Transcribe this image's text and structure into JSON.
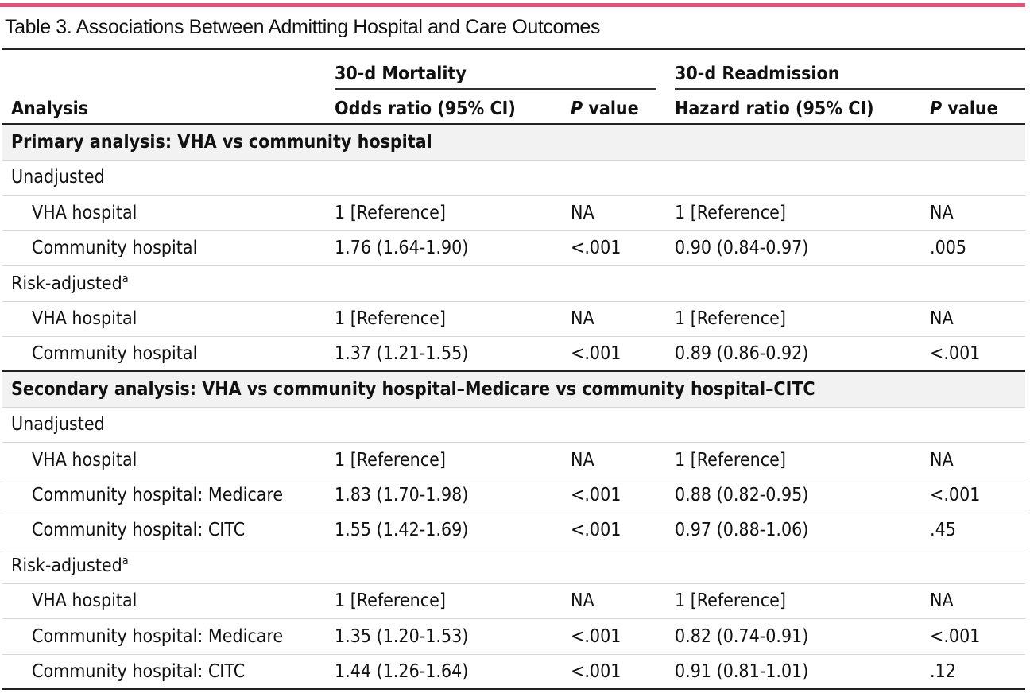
{
  "title": "Table 3. Associations Between Admitting Hospital and Care Outcomes",
  "accent_color": "#e05277",
  "headers": {
    "analysis": "Analysis",
    "group_mortality": "30-d Mortality",
    "group_readmission": "30-d Readmission",
    "odds_ratio": "Odds ratio (95% CI)",
    "hazard_ratio": "Hazard ratio (95% CI)",
    "p_italic": "P",
    "p_rest": " value"
  },
  "rows": [
    {
      "kind": "section",
      "label": "Primary analysis: VHA vs community hospital"
    },
    {
      "kind": "subsection",
      "label": "Unadjusted",
      "sup": ""
    },
    {
      "kind": "data",
      "label": "VHA hospital",
      "or": "1 [Reference]",
      "p1": "NA",
      "hr": "1 [Reference]",
      "p2": "NA"
    },
    {
      "kind": "data",
      "label": "Community hospital",
      "or": "1.76 (1.64-1.90)",
      "p1": "<.001",
      "hr": "0.90 (0.84-0.97)",
      "p2": ".005"
    },
    {
      "kind": "subsection",
      "label": "Risk-adjusted",
      "sup": "a"
    },
    {
      "kind": "data",
      "label": "VHA hospital",
      "or": "1 [Reference]",
      "p1": "NA",
      "hr": "1 [Reference]",
      "p2": "NA"
    },
    {
      "kind": "data",
      "label": "Community hospital",
      "or": "1.37 (1.21-1.55)",
      "p1": "<.001",
      "hr": "0.89 (0.86-0.92)",
      "p2": "<.001"
    },
    {
      "kind": "section",
      "label": "Secondary analysis: VHA vs community hospital–Medicare vs community hospital–CITC"
    },
    {
      "kind": "subsection",
      "label": "Unadjusted",
      "sup": ""
    },
    {
      "kind": "data",
      "label": "VHA hospital",
      "or": "1 [Reference]",
      "p1": "NA",
      "hr": "1 [Reference]",
      "p2": "NA"
    },
    {
      "kind": "data",
      "label": "Community hospital: Medicare",
      "or": "1.83 (1.70-1.98)",
      "p1": "<.001",
      "hr": "0.88 (0.82-0.95)",
      "p2": "<.001"
    },
    {
      "kind": "data",
      "label": "Community hospital: CITC",
      "or": "1.55 (1.42-1.69)",
      "p1": "<.001",
      "hr": "0.97 (0.88-1.06)",
      "p2": ".45"
    },
    {
      "kind": "subsection",
      "label": "Risk-adjusted",
      "sup": "a"
    },
    {
      "kind": "data",
      "label": "VHA hospital",
      "or": "1 [Reference]",
      "p1": "NA",
      "hr": "1 [Reference]",
      "p2": "NA"
    },
    {
      "kind": "data",
      "label": "Community hospital: Medicare",
      "or": "1.35 (1.20-1.53)",
      "p1": "<.001",
      "hr": "0.82 (0.74-0.91)",
      "p2": "<.001"
    },
    {
      "kind": "data",
      "label": "Community hospital: CITC",
      "or": "1.44 (1.26-1.64)",
      "p1": "<.001",
      "hr": "0.91 (0.81-1.01)",
      "p2": ".12"
    }
  ]
}
